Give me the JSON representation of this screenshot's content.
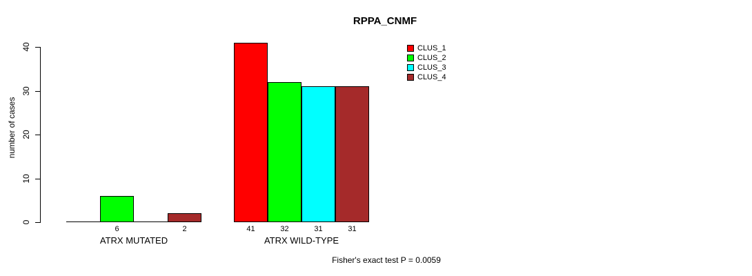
{
  "chart_data": {
    "type": "bar",
    "title": "RPPA_CNMF",
    "ylabel": "number of cases",
    "xlabel": "",
    "ylim": [
      0,
      40
    ],
    "yticks": [
      0,
      10,
      20,
      30,
      40
    ],
    "grid": false,
    "legend_position": "top-right",
    "categories": [
      "ATRX MUTATED",
      "ATRX WILD-TYPE"
    ],
    "series": [
      {
        "name": "CLUS_1",
        "color": "#ff0000",
        "values": [
          0,
          41
        ]
      },
      {
        "name": "CLUS_2",
        "color": "#00ff00",
        "values": [
          6,
          32
        ]
      },
      {
        "name": "CLUS_3",
        "color": "#00ffff",
        "values": [
          0,
          31
        ]
      },
      {
        "name": "CLUS_4",
        "color": "#a52a2a",
        "values": [
          2,
          31
        ]
      }
    ],
    "bar_value_labels_shown": [
      "6",
      "2",
      "41",
      "32",
      "31",
      "31"
    ],
    "annotation": "Fisher's exact test P = 0.0059"
  }
}
